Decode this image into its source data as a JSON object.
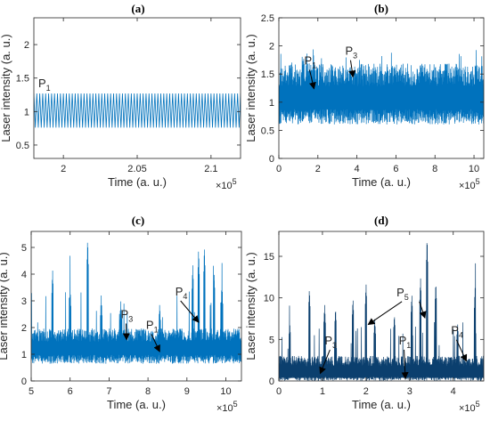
{
  "colors": {
    "light_blue": "#0072BD",
    "dark_blue": "#0B3F6E",
    "axis": "#262626",
    "arrow": "#000000"
  },
  "chart_data": [
    {
      "panel": "(a)",
      "type": "line",
      "xlabel": "Time (a. u.)",
      "ylabel": "Laser intensity (a. u.)",
      "x_exponent": "×10",
      "x_exponent_power": "5",
      "xlim": [
        1.98,
        2.12
      ],
      "ylim": [
        0.3,
        2.4
      ],
      "xticks": [
        "2",
        "2.05",
        "2.1"
      ],
      "xtick_values": [
        2.0,
        2.05,
        2.1
      ],
      "yticks": [
        "0.5",
        "1",
        "1.5",
        "2"
      ],
      "ytick_values": [
        0.5,
        1.0,
        1.5,
        2.0
      ],
      "series": [
        {
          "kind": "periodic",
          "color": "light_blue",
          "min": 0.76,
          "max": 1.27,
          "cycles": 70
        }
      ],
      "annotations": [
        {
          "label": "P",
          "sub": "1",
          "x": 1.983,
          "y": 1.36
        }
      ]
    },
    {
      "panel": "(b)",
      "type": "line",
      "xlabel": "Time (a. u.)",
      "ylabel": "Laser intensity (a. u.)",
      "x_exponent": "×10",
      "x_exponent_power": "5",
      "xlim": [
        0,
        10.5
      ],
      "ylim": [
        0,
        2.5
      ],
      "xticks": [
        "0",
        "2",
        "4",
        "6",
        "8",
        "10"
      ],
      "xtick_values": [
        0,
        2,
        4,
        6,
        8,
        10
      ],
      "yticks": [
        "0",
        "0.5",
        "1",
        "1.5",
        "2",
        "2.5"
      ],
      "ytick_values": [
        0,
        0.5,
        1.0,
        1.5,
        2.0,
        2.5
      ],
      "series": [
        {
          "kind": "noise",
          "color": "light_blue",
          "base": 1.1,
          "spread": 0.45,
          "spike_max": 1.95
        }
      ],
      "annotations": [
        {
          "label": "P",
          "sub": "1",
          "x": 1.3,
          "y": 1.67,
          "ax": 1.8,
          "ay": 1.24
        },
        {
          "label": "P",
          "sub": "3",
          "x": 3.4,
          "y": 1.84,
          "ax": 3.8,
          "ay": 1.45
        }
      ]
    },
    {
      "panel": "(c)",
      "type": "line",
      "xlabel": "Time (a. u.)",
      "ylabel": "Laser intensity (a. u.)",
      "x_exponent": "×10",
      "x_exponent_power": "5",
      "xlim": [
        5,
        10.4
      ],
      "ylim": [
        0,
        5.6
      ],
      "xticks": [
        "5",
        "6",
        "7",
        "8",
        "9",
        "10"
      ],
      "xtick_values": [
        5,
        6,
        7,
        8,
        9,
        10
      ],
      "yticks": [
        "0",
        "1",
        "2",
        "3",
        "4",
        "5"
      ],
      "ytick_values": [
        0,
        1,
        2,
        3,
        4,
        5
      ],
      "series": [
        {
          "kind": "spiky",
          "color": "light_blue",
          "base": 1.25,
          "spread": 0.55,
          "spikes": [
            [
              5.55,
              4.2
            ],
            [
              6.0,
              3.6
            ],
            [
              6.45,
              5.4
            ],
            [
              6.8,
              3.2
            ],
            [
              7.3,
              3.0
            ],
            [
              8.3,
              2.9
            ],
            [
              9.15,
              4.4
            ],
            [
              9.3,
              5.0
            ],
            [
              9.45,
              5.1
            ],
            [
              9.7,
              4.1
            ],
            [
              9.9,
              3.8
            ]
          ]
        }
      ],
      "annotations": [
        {
          "label": "P",
          "sub": "3",
          "x": 7.3,
          "y": 2.35,
          "ax": 7.45,
          "ay": 1.55
        },
        {
          "label": "P",
          "sub": "1",
          "x": 7.95,
          "y": 1.95,
          "ax": 8.3,
          "ay": 1.1
        },
        {
          "label": "P",
          "sub": "4",
          "x": 8.7,
          "y": 3.2,
          "ax": 9.3,
          "ay": 2.2
        }
      ]
    },
    {
      "panel": "(d)",
      "type": "line",
      "xlabel": "Time (a. u.)",
      "ylabel": "Laser intensity (a. u.)",
      "x_exponent": "×10",
      "x_exponent_power": "5",
      "xlim": [
        0,
        4.7
      ],
      "ylim": [
        0,
        18
      ],
      "xticks": [
        "0",
        "1",
        "2",
        "3",
        "4"
      ],
      "xtick_values": [
        0,
        1,
        2,
        3,
        4
      ],
      "yticks": [
        "0",
        "5",
        "10",
        "15"
      ],
      "ytick_values": [
        0,
        5,
        10,
        15
      ],
      "series": [
        {
          "kind": "spiky",
          "color": "dark_blue",
          "base": 1.2,
          "spread": 1.4,
          "spikes": [
            [
              0.25,
              7
            ],
            [
              0.7,
              11.2
            ],
            [
              1.05,
              9.2
            ],
            [
              1.3,
              8.8
            ],
            [
              1.7,
              10
            ],
            [
              2.0,
              11.8
            ],
            [
              2.2,
              7.5
            ],
            [
              2.65,
              8
            ],
            [
              3.05,
              10.5
            ],
            [
              3.25,
              12.5
            ],
            [
              3.4,
              17.5
            ],
            [
              3.6,
              12
            ],
            [
              4.1,
              7
            ],
            [
              4.5,
              11.3
            ]
          ]
        }
      ],
      "annotations": [
        {
          "label": "P",
          "sub": "5",
          "x": 2.7,
          "y": 10.2,
          "ax": 2.05,
          "ay": 6.8
        },
        {
          "label": "",
          "sub": "",
          "x": 3.1,
          "y": 10.2,
          "ax": 3.35,
          "ay": 7.6
        },
        {
          "label": "P",
          "sub": "3",
          "x": 1.05,
          "y": 4.4,
          "ax": 0.95,
          "ay": 0.9
        },
        {
          "label": "P",
          "sub": "1",
          "x": 2.75,
          "y": 4.4,
          "ax": 2.9,
          "ay": 0.3
        },
        {
          "label": "P",
          "sub": "4",
          "x": 3.95,
          "y": 5.6,
          "ax": 4.3,
          "ay": 2.4
        }
      ]
    }
  ]
}
